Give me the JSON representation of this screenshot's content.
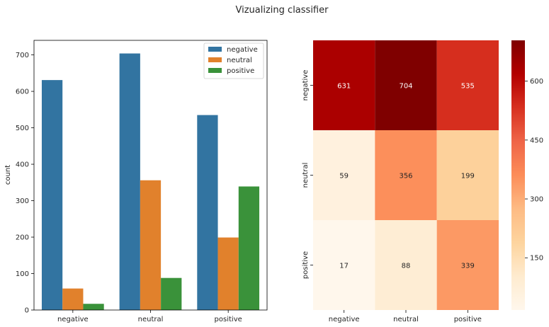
{
  "figure_title": "Vizualizing classifier",
  "chart_data": [
    {
      "type": "bar",
      "categories": [
        "negative",
        "neutral",
        "positive"
      ],
      "series": [
        {
          "name": "negative",
          "values": [
            631,
            704,
            535
          ]
        },
        {
          "name": "neutral",
          "values": [
            59,
            356,
            199
          ]
        },
        {
          "name": "positive",
          "values": [
            17,
            88,
            339
          ]
        }
      ],
      "colors": [
        "#3274a1",
        "#e1812c",
        "#3a923a"
      ],
      "xlabel": "",
      "ylabel": "count",
      "ylim": [
        0,
        740
      ],
      "yticks": [
        0,
        100,
        200,
        300,
        400,
        500,
        600,
        700
      ],
      "legend": "top-right",
      "grid": false
    },
    {
      "type": "heatmap",
      "rows": [
        "negative",
        "neutral",
        "positive"
      ],
      "columns": [
        "negative",
        "neutral",
        "positive"
      ],
      "values": [
        [
          631,
          704,
          535
        ],
        [
          59,
          356,
          199
        ],
        [
          17,
          88,
          339
        ]
      ],
      "colormap": "OrRd",
      "vmin": 17,
      "vmax": 704,
      "colorbar_ticks": [
        150,
        300,
        450,
        600
      ],
      "annotated": true
    }
  ]
}
